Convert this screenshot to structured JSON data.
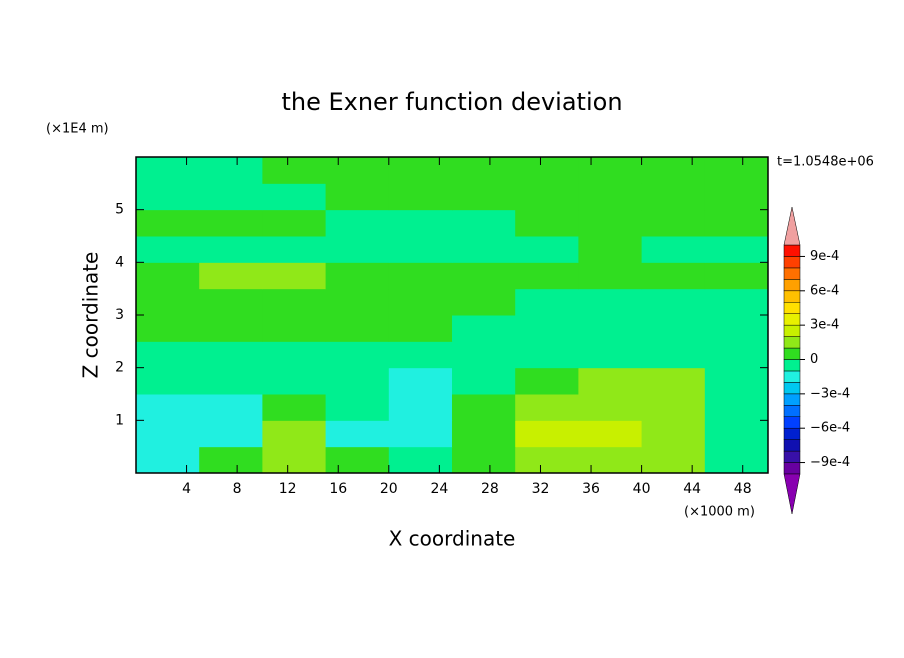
{
  "chart_data": {
    "type": "contour",
    "title": "the Exner function deviation",
    "xlabel": "X coordinate",
    "ylabel": "Z coordinate",
    "x_unit": "(×1000 m)",
    "y_unit": "(×1E4 m)",
    "annotation": "t=1.0548e+06",
    "xlim": [
      0,
      50
    ],
    "ylim": [
      0,
      6
    ],
    "xticks": [
      4,
      8,
      12,
      16,
      20,
      24,
      28,
      32,
      36,
      40,
      44,
      48
    ],
    "yticks": [
      1,
      2,
      3,
      4,
      5
    ],
    "x": [
      2.5,
      7.5,
      12.5,
      17.5,
      22.5,
      27.5,
      32.5,
      37.5,
      42.5,
      47.5
    ],
    "y": [
      0.25,
      0.75,
      1.25,
      1.75,
      2.25,
      2.75,
      3.25,
      3.75,
      4.25,
      4.75,
      5.25,
      5.75
    ],
    "z": [
      [
        -0.00015,
        5e-05,
        0.00015,
        5e-05,
        -5e-05,
        5e-05,
        0.00015,
        0.00015,
        0.00015,
        -5e-05
      ],
      [
        -0.00015,
        -0.00015,
        0.00015,
        -0.00015,
        -0.00015,
        5e-05,
        0.00025,
        0.00025,
        0.00015,
        -5e-05
      ],
      [
        -0.00015,
        -0.00015,
        5e-05,
        -5e-05,
        -0.00015,
        5e-05,
        0.00015,
        0.00015,
        0.00015,
        -5e-05
      ],
      [
        -5e-05,
        -5e-05,
        -5e-05,
        -5e-05,
        -0.00015,
        -5e-05,
        5e-05,
        0.00015,
        0.00015,
        -5e-05
      ],
      [
        -5e-05,
        -5e-05,
        -5e-05,
        -5e-05,
        -5e-05,
        -5e-05,
        -5e-05,
        -5e-05,
        -5e-05,
        -5e-05
      ],
      [
        5e-05,
        5e-05,
        5e-05,
        5e-05,
        5e-05,
        -5e-05,
        -5e-05,
        -5e-05,
        -5e-05,
        -5e-05
      ],
      [
        5e-05,
        5e-05,
        5e-05,
        5e-05,
        5e-05,
        5e-05,
        -5e-05,
        -5e-05,
        -5e-05,
        -5e-05
      ],
      [
        5e-05,
        0.00015,
        0.00015,
        5e-05,
        5e-05,
        5e-05,
        5e-05,
        5e-05,
        5e-05,
        5e-05
      ],
      [
        -5e-05,
        -5e-05,
        -5e-05,
        -5e-05,
        -5e-05,
        -5e-05,
        -5e-05,
        5e-05,
        -5e-05,
        -5e-05
      ],
      [
        5e-05,
        5e-05,
        5e-05,
        -5e-05,
        -5e-05,
        -5e-05,
        5e-05,
        5e-05,
        5e-05,
        5e-05
      ],
      [
        -5e-05,
        -5e-05,
        -5e-05,
        5e-05,
        5e-05,
        5e-05,
        5e-05,
        5e-05,
        5e-05,
        5e-05
      ],
      [
        -5e-05,
        -5e-05,
        5e-05,
        5e-05,
        5e-05,
        5e-05,
        5e-05,
        5e-05,
        5e-05,
        5e-05
      ]
    ],
    "levels": [
      -0.001,
      -0.0009,
      -0.0008,
      -0.0007,
      -0.0006,
      -0.0005,
      -0.0004,
      -0.0003,
      -0.0002,
      -0.0001,
      0,
      0.0001,
      0.0002,
      0.0003,
      0.0004,
      0.0005,
      0.0006,
      0.0007,
      0.0008,
      0.0009,
      0.001
    ],
    "colors": [
      "#6800a0",
      "#3810a8",
      "#1010b0",
      "#0020d0",
      "#0040ff",
      "#0070ff",
      "#00a0ff",
      "#00c8f0",
      "#20f0e0",
      "#00f090",
      "#30dd20",
      "#90e818",
      "#c8f000",
      "#e8f000",
      "#ffe000",
      "#ffc000",
      "#ffa000",
      "#ff7000",
      "#ff4000",
      "#ff1000"
    ],
    "extend_colors": [
      "#8800b0",
      "#f0a0a0"
    ],
    "cbar_ticks": [
      {
        "value": -0.0009,
        "label": "−9e-4"
      },
      {
        "value": -0.0006,
        "label": "−6e-4"
      },
      {
        "value": -0.0003,
        "label": "−3e-4"
      },
      0,
      {
        "value": 0.0003,
        "label": "3e-4"
      },
      {
        "value": 0.0006,
        "label": "6e-4"
      },
      {
        "value": 0.0009,
        "label": "9e-4"
      }
    ]
  }
}
